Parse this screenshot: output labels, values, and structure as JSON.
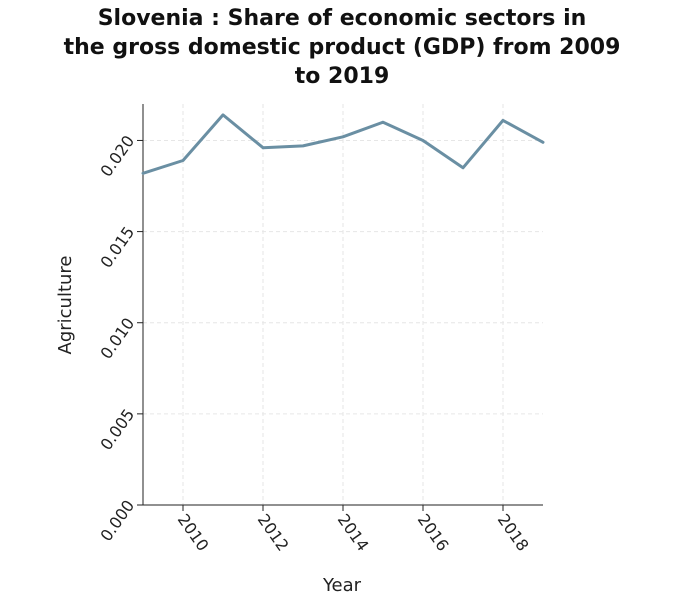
{
  "chart_data": {
    "type": "line",
    "title_lines": [
      "Slovenia : Share of economic sectors in",
      "the gross domestic product (GDP) from 2009",
      "to 2019"
    ],
    "xlabel": "Year",
    "ylabel": "Agriculture",
    "xlim": [
      2009,
      2019
    ],
    "ylim": [
      0,
      0.022
    ],
    "x_ticks": [
      2010,
      2012,
      2014,
      2016,
      2018
    ],
    "x_tick_labels": [
      "2010",
      "2012",
      "2014",
      "2016",
      "2018"
    ],
    "y_ticks": [
      0,
      0.005,
      0.01,
      0.015,
      0.02
    ],
    "y_tick_labels": [
      "0.000",
      "0.005",
      "0.010",
      "0.015",
      "0.020"
    ],
    "grid": true,
    "line_color": "#6a8fa3",
    "series": [
      {
        "x": [
          2009,
          2010,
          2011,
          2012,
          2013,
          2014,
          2015,
          2016,
          2017,
          2018,
          2019
        ],
        "values": [
          0.0182,
          0.0189,
          0.0214,
          0.0196,
          0.0197,
          0.0202,
          0.021,
          0.02,
          0.0185,
          0.0211,
          0.0199
        ]
      }
    ]
  }
}
